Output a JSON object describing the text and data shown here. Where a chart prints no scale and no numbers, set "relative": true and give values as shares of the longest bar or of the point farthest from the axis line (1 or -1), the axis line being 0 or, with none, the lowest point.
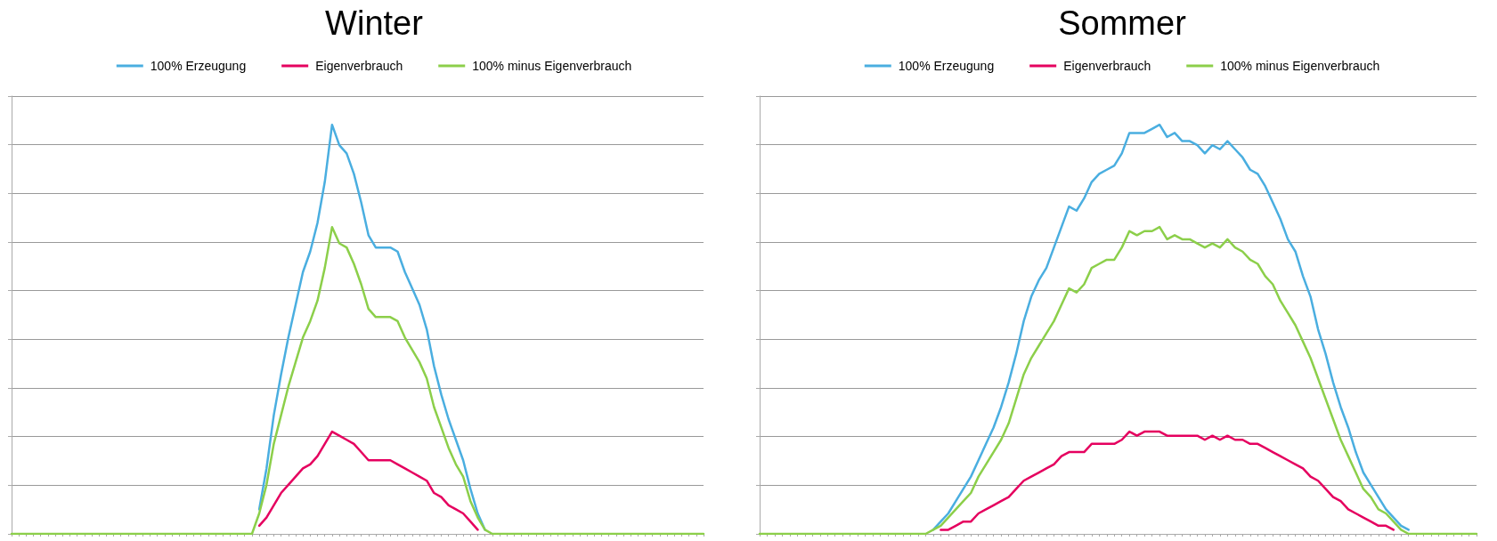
{
  "chart_data": [
    {
      "type": "line",
      "title": "Winter",
      "relative": true,
      "grid": "y",
      "legend": "top",
      "line_style": "solid",
      "categories": [
        null,
        null,
        null,
        null,
        null,
        null,
        null,
        null,
        null,
        null,
        null,
        null,
        null,
        null,
        null,
        null,
        null,
        null,
        null,
        null,
        null,
        null,
        null,
        null,
        null,
        null,
        null,
        null,
        null,
        null,
        null,
        null,
        null,
        null,
        null,
        null,
        null,
        null,
        null,
        null,
        null,
        null,
        null,
        null,
        null,
        null,
        null,
        null,
        null,
        null,
        null,
        null,
        null,
        null,
        null,
        null,
        null,
        null,
        null,
        null,
        null,
        null,
        null,
        null,
        null,
        null,
        null,
        null,
        null,
        null,
        null,
        null,
        null,
        null,
        null,
        null,
        null,
        null,
        null,
        null,
        null,
        null,
        null,
        null,
        null,
        null,
        null,
        null,
        null,
        null,
        null,
        null,
        null,
        null,
        null,
        null
      ],
      "series": [
        {
          "name": "100% Erzeugung",
          "color": "#4aaee0",
          "values": [
            null,
            null,
            null,
            null,
            null,
            null,
            null,
            null,
            null,
            null,
            null,
            null,
            null,
            null,
            null,
            null,
            null,
            null,
            null,
            null,
            null,
            null,
            null,
            null,
            null,
            null,
            null,
            null,
            null,
            null,
            null,
            null,
            null,
            null,
            0.06,
            0.16,
            0.29,
            0.39,
            0.48,
            0.56,
            0.64,
            0.69,
            0.76,
            0.86,
            1,
            0.95,
            0.93,
            0.88,
            0.81,
            0.73,
            0.7,
            0.7,
            0.7,
            0.69,
            0.64,
            0.6,
            0.56,
            0.5,
            0.41,
            0.34,
            0.28,
            0.23,
            0.18,
            0.11,
            0.05,
            0.01,
            null,
            null,
            null,
            null,
            null,
            null,
            null,
            null,
            null,
            null,
            null,
            null,
            null,
            null,
            null,
            null,
            null,
            null,
            null,
            null,
            null,
            null,
            null,
            null,
            null,
            null,
            null,
            null,
            null,
            null
          ]
        },
        {
          "name": "Eigenverbrauch",
          "color": "#e5005f",
          "values": [
            null,
            null,
            null,
            null,
            null,
            null,
            null,
            null,
            null,
            null,
            null,
            null,
            null,
            null,
            null,
            null,
            null,
            null,
            null,
            null,
            null,
            null,
            null,
            null,
            null,
            null,
            null,
            null,
            null,
            null,
            null,
            null,
            null,
            null,
            0.02,
            0.04,
            0.07,
            0.1,
            0.12,
            0.14,
            0.16,
            0.17,
            0.19,
            0.22,
            0.25,
            0.24,
            0.23,
            0.22,
            0.2,
            0.18,
            0.18,
            0.18,
            0.18,
            0.17,
            0.16,
            0.15,
            0.14,
            0.13,
            0.1,
            0.09,
            0.07,
            0.06,
            0.05,
            0.03,
            0.01,
            null,
            null,
            null,
            null,
            null,
            null,
            null,
            null,
            null,
            null,
            null,
            null,
            null,
            null,
            null,
            null,
            null,
            null,
            null,
            null,
            null,
            null,
            null,
            null,
            null,
            null,
            null,
            null,
            null,
            null,
            null
          ]
        },
        {
          "name": "100% minus Eigenverbrauch",
          "color": "#8ccf4a",
          "values": [
            0,
            0,
            0,
            0,
            0,
            0,
            0,
            0,
            0,
            0,
            0,
            0,
            0,
            0,
            0,
            0,
            0,
            0,
            0,
            0,
            0,
            0,
            0,
            0,
            0,
            0,
            0,
            0,
            0,
            0,
            0,
            0,
            0,
            0,
            0.05,
            0.12,
            0.22,
            0.29,
            0.36,
            0.42,
            0.48,
            0.52,
            0.57,
            0.65,
            0.75,
            0.71,
            0.7,
            0.66,
            0.61,
            0.55,
            0.53,
            0.53,
            0.53,
            0.52,
            0.48,
            0.45,
            0.42,
            0.38,
            0.31,
            0.26,
            0.21,
            0.17,
            0.14,
            0.08,
            0.04,
            0.01,
            0,
            0,
            0,
            0,
            0,
            0,
            0,
            0,
            0,
            0,
            0,
            0,
            0,
            0,
            0,
            0,
            0,
            0,
            0,
            0,
            0,
            0,
            0,
            0,
            0,
            0,
            0,
            0,
            0,
            0
          ]
        }
      ]
    },
    {
      "type": "line",
      "title": "Sommer",
      "relative": true,
      "grid": "y",
      "legend": "top",
      "line_style": "solid",
      "categories": [
        null,
        null,
        null,
        null,
        null,
        null,
        null,
        null,
        null,
        null,
        null,
        null,
        null,
        null,
        null,
        null,
        null,
        null,
        null,
        null,
        null,
        null,
        null,
        null,
        null,
        null,
        null,
        null,
        null,
        null,
        null,
        null,
        null,
        null,
        null,
        null,
        null,
        null,
        null,
        null,
        null,
        null,
        null,
        null,
        null,
        null,
        null,
        null,
        null,
        null,
        null,
        null,
        null,
        null,
        null,
        null,
        null,
        null,
        null,
        null,
        null,
        null,
        null,
        null,
        null,
        null,
        null,
        null,
        null,
        null,
        null,
        null,
        null,
        null,
        null,
        null,
        null,
        null,
        null,
        null,
        null,
        null,
        null,
        null,
        null,
        null,
        null,
        null,
        null,
        null,
        null,
        null,
        null,
        null,
        null,
        null
      ],
      "series": [
        {
          "name": "100% Erzeugung",
          "color": "#4aaee0",
          "values": [
            null,
            null,
            null,
            null,
            null,
            null,
            null,
            null,
            null,
            null,
            null,
            null,
            null,
            null,
            null,
            null,
            null,
            null,
            null,
            null,
            null,
            null,
            null,
            0.01,
            0.03,
            0.05,
            0.08,
            0.11,
            0.14,
            0.18,
            0.22,
            0.26,
            0.31,
            0.37,
            0.44,
            0.52,
            0.58,
            0.62,
            0.65,
            0.7,
            0.75,
            0.8,
            0.79,
            0.82,
            0.86,
            0.88,
            0.89,
            0.9,
            0.93,
            0.98,
            0.98,
            0.98,
            0.99,
            1,
            0.97,
            0.98,
            0.96,
            0.96,
            0.95,
            0.93,
            0.95,
            0.94,
            0.96,
            0.94,
            0.92,
            0.89,
            0.88,
            0.85,
            0.81,
            0.77,
            0.72,
            0.69,
            0.63,
            0.58,
            0.5,
            0.44,
            0.37,
            0.31,
            0.26,
            0.2,
            0.15,
            0.12,
            0.09,
            0.06,
            0.04,
            0.02,
            0.01,
            null,
            null,
            null,
            null,
            null,
            null,
            null,
            null,
            null
          ]
        },
        {
          "name": "Eigenverbrauch",
          "color": "#e5005f",
          "values": [
            null,
            null,
            null,
            null,
            null,
            null,
            null,
            null,
            null,
            null,
            null,
            null,
            null,
            null,
            null,
            null,
            null,
            null,
            null,
            null,
            null,
            null,
            null,
            null,
            0.01,
            0.01,
            0.02,
            0.03,
            0.03,
            0.05,
            0.06,
            0.07,
            0.08,
            0.09,
            0.11,
            0.13,
            0.14,
            0.15,
            0.16,
            0.17,
            0.19,
            0.2,
            0.2,
            0.2,
            0.22,
            0.22,
            0.22,
            0.22,
            0.23,
            0.25,
            0.24,
            0.25,
            0.25,
            0.25,
            0.24,
            0.24,
            0.24,
            0.24,
            0.24,
            0.23,
            0.24,
            0.23,
            0.24,
            0.23,
            0.23,
            0.22,
            0.22,
            0.21,
            0.2,
            0.19,
            0.18,
            0.17,
            0.16,
            0.14,
            0.13,
            0.11,
            0.09,
            0.08,
            0.06,
            0.05,
            0.04,
            0.03,
            0.02,
            0.02,
            0.01,
            null,
            null,
            null,
            null,
            null,
            null,
            null,
            null,
            null,
            null,
            null
          ]
        },
        {
          "name": "100% minus Eigenverbrauch",
          "color": "#8ccf4a",
          "values": [
            0,
            0,
            0,
            0,
            0,
            0,
            0,
            0,
            0,
            0,
            0,
            0,
            0,
            0,
            0,
            0,
            0,
            0,
            0,
            0,
            0,
            0,
            0.0,
            0.01,
            0.02,
            0.04,
            0.06,
            0.08,
            0.1,
            0.14,
            0.17,
            0.2,
            0.23,
            0.27,
            0.33,
            0.39,
            0.43,
            0.46,
            0.49,
            0.52,
            0.56,
            0.6,
            0.59,
            0.61,
            0.65,
            0.66,
            0.67,
            0.67,
            0.7,
            0.74,
            0.73,
            0.74,
            0.74,
            0.75,
            0.72,
            0.73,
            0.72,
            0.72,
            0.71,
            0.7,
            0.71,
            0.7,
            0.72,
            0.7,
            0.69,
            0.67,
            0.66,
            0.63,
            0.61,
            0.57,
            0.54,
            0.51,
            0.47,
            0.43,
            0.38,
            0.33,
            0.28,
            0.23,
            0.19,
            0.15,
            0.11,
            0.09,
            0.06,
            0.05,
            0.03,
            0.01,
            0.0,
            0,
            0,
            0,
            0,
            0,
            0,
            0,
            0,
            0
          ]
        }
      ]
    }
  ]
}
